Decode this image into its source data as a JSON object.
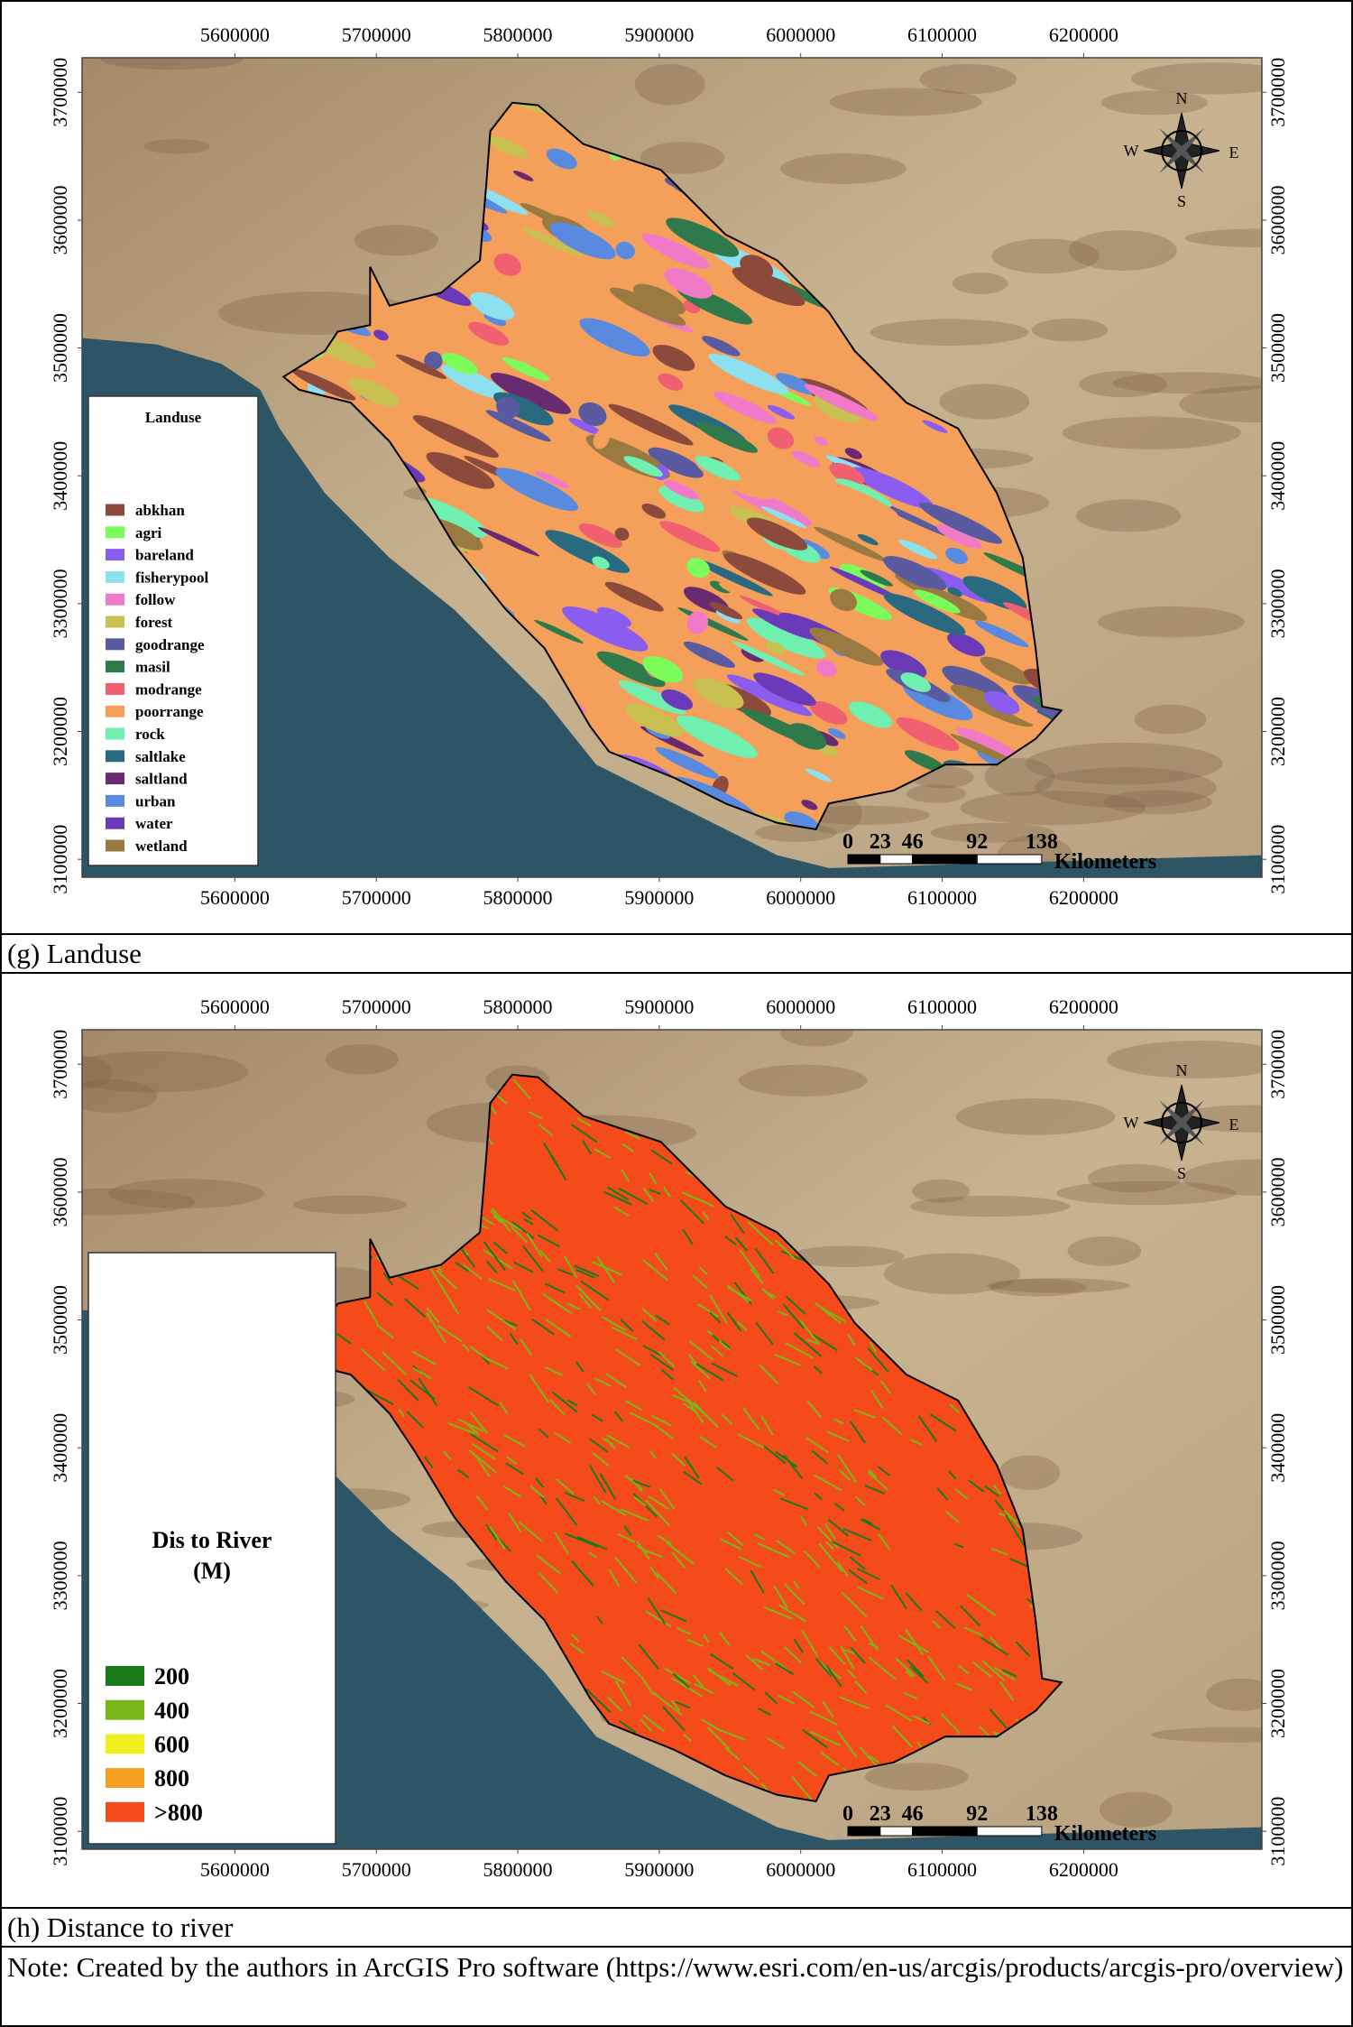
{
  "panels": [
    {
      "map": {
        "xlim": [
          5492000,
          6326000
        ],
        "ylim": [
          3086000,
          3727000
        ],
        "xticks": [
          5600000,
          5700000,
          5800000,
          5900000,
          6000000,
          6100000,
          6200000
        ],
        "yticks": [
          3100000,
          3200000,
          3300000,
          3400000,
          3500000,
          3600000,
          3700000
        ],
        "legend": {
          "title_lines": [
            "Landuse"
          ],
          "items": [
            {
              "label": "abkhan",
              "color": "#8b4a3c"
            },
            {
              "label": "agri",
              "color": "#7cfc5a"
            },
            {
              "label": "bareland",
              "color": "#8a5cf0"
            },
            {
              "label": "fisherypool",
              "color": "#8de0f0"
            },
            {
              "label": "follow",
              "color": "#f07ac8"
            },
            {
              "label": "forest",
              "color": "#c8c050"
            },
            {
              "label": "goodrange",
              "color": "#5a5aa0"
            },
            {
              "label": "masil",
              "color": "#2e7a4a"
            },
            {
              "label": "modrange",
              "color": "#f06070"
            },
            {
              "label": "poorrange",
              "color": "#f5a05a"
            },
            {
              "label": "rock",
              "color": "#70f0b0"
            },
            {
              "label": "saltlake",
              "color": "#2a6a80"
            },
            {
              "label": "saltland",
              "color": "#6a2a70"
            },
            {
              "label": "urban",
              "color": "#5a8ae0"
            },
            {
              "label": "water",
              "color": "#6a3ab8"
            },
            {
              "label": "wetland",
              "color": "#9a7a40"
            }
          ]
        },
        "compass": {
          "n": "N",
          "e": "E",
          "s": "S",
          "w": "W"
        },
        "scale_bar": {
          "ticks": [
            0,
            23,
            46,
            92,
            138
          ],
          "unit": "Kilometers"
        }
      },
      "caption": "(g) Landuse"
    },
    {
      "map": {
        "xlim": [
          5492000,
          6326000
        ],
        "ylim": [
          3086000,
          3727000
        ],
        "xticks": [
          5600000,
          5700000,
          5800000,
          5900000,
          6000000,
          6100000,
          6200000
        ],
        "yticks": [
          3100000,
          3200000,
          3300000,
          3400000,
          3500000,
          3600000,
          3700000
        ],
        "legend": {
          "title_lines": [
            "Dis to River",
            "(M)"
          ],
          "items": [
            {
              "label": 200,
              "color": "#1a7a1a"
            },
            {
              "label": 400,
              "color": "#7ab81a"
            },
            {
              "label": 600,
              "color": "#f0f020"
            },
            {
              "label": 800,
              "color": "#f5a020"
            },
            {
              "label": ">800",
              "color": "#f54a1a"
            }
          ]
        },
        "compass": {
          "n": "N",
          "e": "E",
          "s": "S",
          "w": "W"
        },
        "scale_bar": {
          "ticks": [
            0,
            23,
            46,
            92,
            138
          ],
          "unit": "Kilometers"
        }
      },
      "caption": "(h) Distance to river"
    }
  ],
  "note": "Note: Created by the authors in ArcGIS Pro software (https://www.esri.com/en-us/arcgis/products/arcgis-pro/overview)"
}
